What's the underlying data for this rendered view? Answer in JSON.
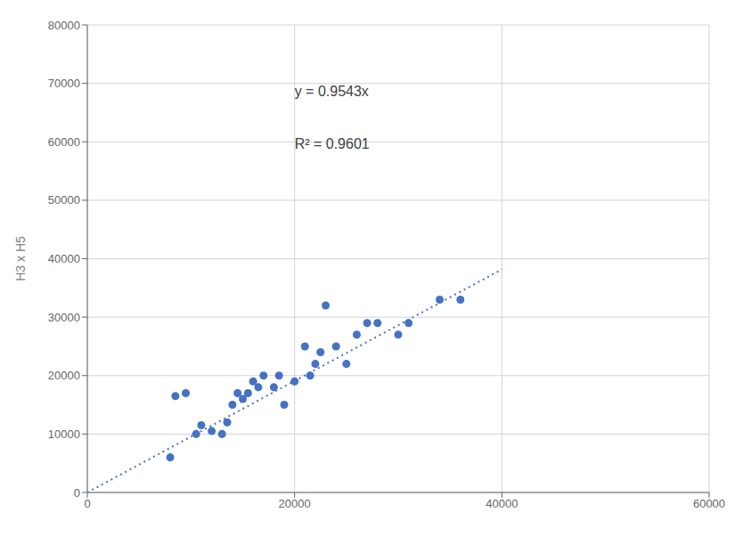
{
  "chart_data": {
    "type": "scatter",
    "ylabel": "H3 x H5",
    "xlim": [
      0,
      60000
    ],
    "ylim": [
      0,
      80000
    ],
    "xticks": [
      0,
      20000,
      40000,
      60000
    ],
    "yticks": [
      0,
      10000,
      20000,
      30000,
      40000,
      50000,
      60000,
      70000,
      80000
    ],
    "grid": true,
    "annotations": [
      "y = 0.9543x",
      "R² = 0.9601"
    ],
    "series": [
      {
        "type": "scatter",
        "color": "#4472C4",
        "marker": "circle",
        "x": [
          8000,
          8500,
          9500,
          10500,
          11000,
          12000,
          13000,
          13500,
          14000,
          14500,
          15000,
          15500,
          16000,
          16500,
          17000,
          18000,
          18500,
          19000,
          20000,
          21000,
          21500,
          22000,
          22500,
          23000,
          24000,
          25000,
          26000,
          27000,
          28000,
          30000,
          31000,
          34000,
          36000
        ],
        "values": [
          6000,
          16500,
          17000,
          10000,
          11500,
          10500,
          10000,
          12000,
          15000,
          17000,
          16000,
          17000,
          19000,
          18000,
          20000,
          18000,
          20000,
          15000,
          19000,
          25000,
          20000,
          22000,
          24000,
          32000,
          25000,
          22000,
          27000,
          29000,
          29000,
          27000,
          29000,
          33000,
          33000
        ]
      },
      {
        "type": "line",
        "color": "#4472C4",
        "line_style": "dotted",
        "x": [
          0,
          40000
        ],
        "values": [
          0,
          38172
        ]
      }
    ]
  }
}
